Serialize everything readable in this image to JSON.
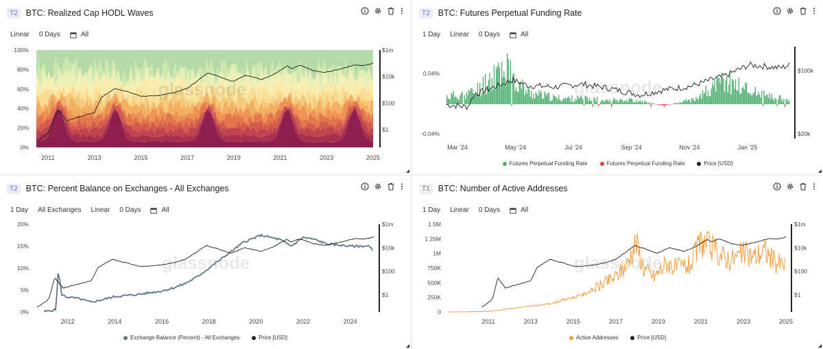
{
  "panels": [
    {
      "badge": "T2",
      "title": "BTC: Realized Cap HODL Waves",
      "controls": [
        "Linear",
        "0 Days",
        "All"
      ]
    },
    {
      "badge": "T2",
      "title": "BTC: Futures Perpetual Funding Rate",
      "controls": [
        "1 Day",
        "Linear",
        "0 Days",
        "All"
      ],
      "legend": [
        {
          "label": "Futures Perpetual Funding Rate",
          "color": "#4caf6e"
        },
        {
          "label": "Futures Perpetual Funding Rate",
          "color": "#e53935"
        },
        {
          "label": "Price [USD]",
          "color": "#222222"
        }
      ]
    },
    {
      "badge": "T2",
      "title": "BTC: Percent Balance on Exchanges - All Exchanges",
      "controls": [
        "1 Day",
        "All Exchanges",
        "Linear",
        "0 Days",
        "All"
      ],
      "legend": [
        {
          "label": "Exchange Balance (Percent) - All Exchanges",
          "color": "#5f7683"
        },
        {
          "label": "Price [USD]",
          "color": "#222222"
        }
      ]
    },
    {
      "badge": "T1",
      "title": "BTC: Number of Active Addresses",
      "controls": [
        "1 Day",
        "Linear",
        "0 Days",
        "All"
      ],
      "legend": [
        {
          "label": "Active Addresses",
          "color": "#f0a040"
        },
        {
          "label": "Price [USD]",
          "color": "#222222"
        }
      ]
    }
  ],
  "watermark": "glassnode",
  "chart_data": [
    {
      "type": "area",
      "title": "BTC: Realized Cap HODL Waves",
      "x_ticks": [
        "2011",
        "2013",
        "2015",
        "2017",
        "2019",
        "2021",
        "2023",
        "2025"
      ],
      "y_left_ticks": [
        "0%",
        "20%",
        "40%",
        "60%",
        "80%",
        "100%"
      ],
      "y_right_ticks": [
        "$1",
        "$100",
        "$10k",
        "$1m"
      ],
      "y_right_scale": "log",
      "stacked": true,
      "band_colors": [
        "#8e1f4e",
        "#a8304f",
        "#bf4450",
        "#d45a4c",
        "#e5764c",
        "#ee9353",
        "#f3b063",
        "#f7c97a",
        "#f9dd93",
        "#fae9a8",
        "#f6efb3",
        "#e6efb4",
        "#cfe6ac",
        "#b4dba7"
      ],
      "price_series": {
        "name": "Price [USD]",
        "x": [
          2010.5,
          2011.0,
          2011.45,
          2011.8,
          2012.5,
          2013.0,
          2013.3,
          2013.9,
          2014.5,
          2015.0,
          2015.6,
          2016.5,
          2017.0,
          2017.9,
          2018.5,
          2018.95,
          2019.5,
          2020.2,
          2020.8,
          2021.3,
          2021.5,
          2021.85,
          2022.4,
          2022.9,
          2023.5,
          2024.2,
          2024.6,
          2025.0
        ],
        "y": [
          0.06,
          0.3,
          25,
          3,
          7,
          13,
          200,
          1000,
          500,
          250,
          250,
          500,
          1000,
          17000,
          7000,
          3500,
          11000,
          5000,
          15000,
          58000,
          33000,
          65000,
          25000,
          17000,
          30000,
          70000,
          60000,
          95000
        ]
      }
    },
    {
      "type": "bar",
      "title": "BTC: Futures Perpetual Funding Rate",
      "x_ticks": [
        "Mar '24",
        "May '24",
        "Jul '24",
        "Sep '24",
        "Nov '24",
        "Jan '25"
      ],
      "y_left_ticks": [
        "-0.04%",
        "0.04%"
      ],
      "y_right_ticks": [
        "$20k",
        "$100k"
      ],
      "series": [
        {
          "name": "Futures Perpetual Funding Rate (positive)",
          "color": "#4caf6e"
        },
        {
          "name": "Futures Perpetual Funding Rate (negative)",
          "color": "#e53935"
        }
      ],
      "funding_rate_pct": {
        "x": [
          "2024-01",
          "2024-02",
          "2024-02-25",
          "2024-03-05",
          "2024-03-12",
          "2024-04",
          "2024-05",
          "2024-06",
          "2024-07",
          "2024-08",
          "2024-09",
          "2024-10",
          "2024-11-10",
          "2024-11-20",
          "2024-12",
          "2025-01"
        ],
        "y": [
          0.01,
          0.015,
          0.04,
          0.05,
          0.035,
          0.015,
          0.008,
          0.007,
          0.006,
          0.005,
          -0.002,
          0.006,
          0.03,
          0.025,
          0.02,
          0.008
        ]
      },
      "price_series": {
        "name": "Price [USD]",
        "x": [
          "2024-01",
          "2024-01-25",
          "2024-02",
          "2024-03-14",
          "2024-04",
          "2024-05",
          "2024-06",
          "2024-07",
          "2024-08-05",
          "2024-09",
          "2024-10",
          "2024-11-10",
          "2024-12-05",
          "2024-12-20",
          "2025-01-10",
          "2025-01-20"
        ],
        "y": [
          42000,
          40000,
          52000,
          72000,
          64000,
          62000,
          66000,
          60000,
          52000,
          58000,
          63000,
          80000,
          100000,
          98000,
          94000,
          100000
        ]
      }
    },
    {
      "type": "line",
      "title": "BTC: Percent Balance on Exchanges - All Exchanges",
      "x_ticks": [
        "2012",
        "2014",
        "2016",
        "2018",
        "2020",
        "2022",
        "2024"
      ],
      "y_left_ticks": [
        "0%",
        "5%",
        "10%",
        "15%",
        "20%"
      ],
      "y_right_ticks": [
        "$1",
        "$100",
        "$10k",
        "$1m"
      ],
      "series": [
        {
          "name": "Exchange Balance (Percent) - All Exchanges",
          "x": [
            2011.0,
            2011.5,
            2011.6,
            2011.75,
            2011.9,
            2012.5,
            2013.0,
            2014.0,
            2015.0,
            2016.0,
            2016.5,
            2017.0,
            2017.5,
            2018.0,
            2018.5,
            2019.0,
            2019.5,
            2020.0,
            2020.2,
            2021.0,
            2021.5,
            2022.0,
            2022.5,
            2023.0,
            2024.0,
            2024.8,
            2024.95
          ],
          "y": [
            0.05,
            0.5,
            9.5,
            4,
            3.5,
            3.0,
            2.2,
            3.5,
            4.0,
            4.8,
            5.5,
            6.5,
            8.0,
            10.0,
            12.0,
            14.0,
            16.0,
            17.0,
            17.5,
            16.5,
            15.0,
            17.0,
            16.5,
            15.5,
            15.0,
            15.0,
            14.0
          ]
        }
      ],
      "price_series": {
        "name": "Price [USD]",
        "x": [
          2010.7,
          2011.2,
          2011.45,
          2011.8,
          2012.5,
          2013.0,
          2013.3,
          2013.9,
          2014.5,
          2015.0,
          2015.6,
          2016.5,
          2017.0,
          2017.9,
          2018.5,
          2018.95,
          2019.5,
          2020.2,
          2020.8,
          2021.3,
          2021.5,
          2021.85,
          2022.4,
          2022.9,
          2023.5,
          2024.2,
          2024.6,
          2025.0
        ],
        "y": [
          0.06,
          0.3,
          25,
          3,
          7,
          13,
          200,
          1000,
          500,
          250,
          250,
          500,
          1000,
          17000,
          7000,
          3500,
          11000,
          5000,
          15000,
          58000,
          33000,
          65000,
          25000,
          17000,
          30000,
          70000,
          60000,
          95000
        ]
      }
    },
    {
      "type": "line",
      "title": "BTC: Number of Active Addresses",
      "x_ticks": [
        "2011",
        "2013",
        "2015",
        "2017",
        "2019",
        "2021",
        "2023",
        "2025"
      ],
      "y_left_ticks": [
        "0",
        "250K",
        "500K",
        "750K",
        "1M",
        "1.25M",
        "1.5M"
      ],
      "y_right_ticks": [
        "$1",
        "$100",
        "$10k",
        "$1m"
      ],
      "series": [
        {
          "name": "Active Addresses",
          "x": [
            2009.1,
            2010.0,
            2011.0,
            2011.5,
            2012.0,
            2012.5,
            2013.0,
            2013.5,
            2014.0,
            2014.5,
            2015.0,
            2015.5,
            2016.0,
            2016.5,
            2017.0,
            2017.5,
            2017.95,
            2018.3,
            2018.8,
            2019.4,
            2019.8,
            2020.5,
            2021.0,
            2021.5,
            2022.0,
            2022.5,
            2023.0,
            2023.5,
            2024.0,
            2024.5,
            2024.95
          ],
          "y": [
            0,
            2000,
            10000,
            30000,
            60000,
            80000,
            100000,
            120000,
            150000,
            200000,
            250000,
            300000,
            400000,
            500000,
            600000,
            800000,
            1200000,
            750000,
            600000,
            850000,
            750000,
            800000,
            1200000,
            1100000,
            950000,
            900000,
            1000000,
            950000,
            1050000,
            850000,
            800000
          ]
        }
      ],
      "price_series": {
        "name": "Price [USD]",
        "x": [
          2010.7,
          2011.2,
          2011.45,
          2011.8,
          2012.5,
          2013.0,
          2013.3,
          2013.9,
          2014.5,
          2015.0,
          2015.6,
          2016.5,
          2017.0,
          2017.9,
          2018.5,
          2018.95,
          2019.5,
          2020.2,
          2020.8,
          2021.3,
          2021.5,
          2021.85,
          2022.4,
          2022.9,
          2023.5,
          2024.2,
          2024.6,
          2025.0
        ],
        "y": [
          0.06,
          0.3,
          25,
          3,
          7,
          13,
          200,
          1000,
          500,
          250,
          250,
          500,
          1000,
          17000,
          7000,
          3500,
          11000,
          5000,
          15000,
          58000,
          33000,
          65000,
          25000,
          17000,
          30000,
          70000,
          60000,
          95000
        ]
      }
    }
  ]
}
